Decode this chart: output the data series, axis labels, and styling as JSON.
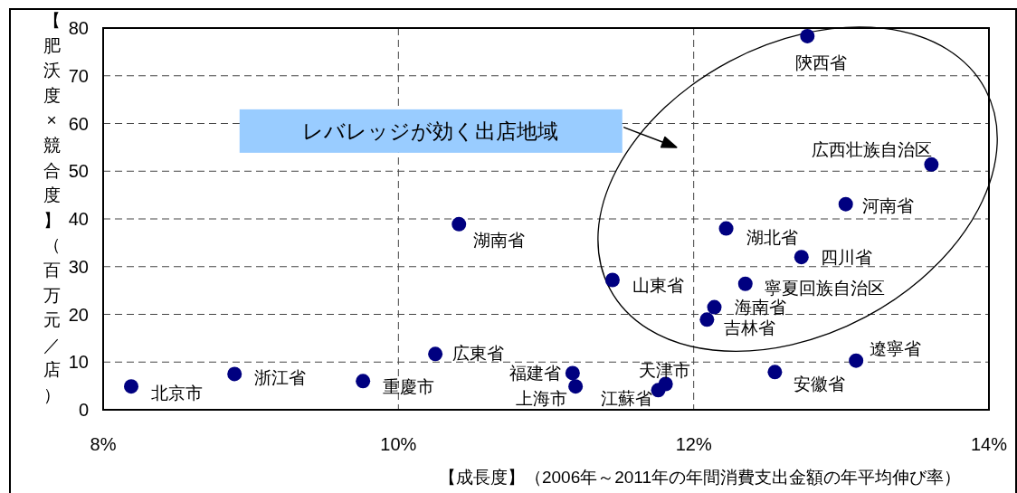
{
  "chart_data": {
    "type": "scatter",
    "xlabel": "【成長度】（2006年～2011年の年間消費支出金額の年平均伸び率）",
    "ylabel": "【肥沃度×競合度】（百万元／店）",
    "x": [
      8.19,
      8.89,
      9.76,
      10.25,
      10.41,
      11.45,
      11.18,
      11.2,
      11.76,
      11.81,
      12.22,
      12.73,
      12.35,
      12.14,
      12.09,
      12.77,
      13.61,
      13.03,
      13.1,
      12.55
    ],
    "series": [
      {
        "color": "#000080",
        "values": [
          4.9,
          7.5,
          6.0,
          11.7,
          38.9,
          27.2,
          7.7,
          4.9,
          4.1,
          5.4,
          38.0,
          32.0,
          26.4,
          21.5,
          18.9,
          78.3,
          51.4,
          43.1,
          10.3,
          7.9
        ]
      }
    ],
    "xlim": [
      8,
      14
    ],
    "xticks": [
      {
        "value": 8,
        "label": "8%"
      },
      {
        "value": 10,
        "label": "10%"
      },
      {
        "value": 12,
        "label": "12%"
      },
      {
        "value": 14,
        "label": "14%"
      }
    ],
    "ylim": [
      0,
      80
    ],
    "yticks": [
      0,
      10,
      20,
      30,
      40,
      50,
      60,
      70,
      80
    ],
    "grid": true,
    "marker": "circle",
    "annotations": [
      {
        "text": "北京市",
        "x": 8.19,
        "y": 4.9
      },
      {
        "text": "浙江省",
        "x": 8.89,
        "y": 7.5
      },
      {
        "text": "重慶市",
        "x": 9.76,
        "y": 6.0
      },
      {
        "text": "広東省",
        "x": 10.25,
        "y": 11.7
      },
      {
        "text": "湖南省",
        "x": 10.41,
        "y": 38.9
      },
      {
        "text": "山東省",
        "x": 11.45,
        "y": 27.2
      },
      {
        "text": "福建省",
        "x": 11.18,
        "y": 7.7
      },
      {
        "text": "上海市",
        "x": 11.2,
        "y": 4.9
      },
      {
        "text": "江蘇省",
        "x": 11.76,
        "y": 4.1
      },
      {
        "text": "天津市",
        "x": 11.81,
        "y": 5.4
      },
      {
        "text": "湖北省",
        "x": 12.22,
        "y": 38.0
      },
      {
        "text": "四川省",
        "x": 12.73,
        "y": 32.0
      },
      {
        "text": "寧夏回族自治区",
        "x": 12.35,
        "y": 26.4
      },
      {
        "text": "海南省",
        "x": 12.14,
        "y": 21.5
      },
      {
        "text": "吉林省",
        "x": 12.09,
        "y": 18.9
      },
      {
        "text": "陝西省",
        "x": 12.77,
        "y": 78.3
      },
      {
        "text": "広西壮族自治区",
        "x": 13.61,
        "y": 51.4
      },
      {
        "text": "河南省",
        "x": 13.03,
        "y": 43.1
      },
      {
        "text": "遼寧省",
        "x": 13.1,
        "y": 10.3
      },
      {
        "text": "安徽省",
        "x": 12.55,
        "y": 7.9
      },
      "レバレッジが効く出店地域"
    ]
  }
}
